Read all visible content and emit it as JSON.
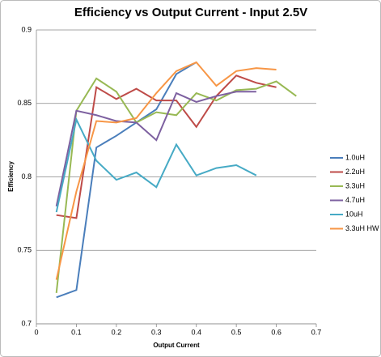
{
  "chart_data": {
    "type": "line",
    "title": "Efficiency vs Output Current - Input 2.5V",
    "x_label": "Output Current",
    "y_label": "Efficiency",
    "x": [
      0.05,
      0.1,
      0.15,
      0.2,
      0.25,
      0.3,
      0.35,
      0.4,
      0.45,
      0.5,
      0.55,
      0.6,
      0.65
    ],
    "series": [
      {
        "name": "1.0uH",
        "color": "#4a7ebb",
        "values": [
          0.718,
          0.723,
          0.82,
          0.828,
          0.837,
          0.846,
          0.87,
          0.878,
          null,
          null,
          null,
          null,
          null
        ]
      },
      {
        "name": "2.2uH",
        "color": "#be4b48",
        "values": [
          0.774,
          0.772,
          0.861,
          0.853,
          0.86,
          0.852,
          0.852,
          0.834,
          0.855,
          0.869,
          0.864,
          0.861,
          null
        ]
      },
      {
        "name": "3.3uH",
        "color": "#98b954",
        "values": [
          0.721,
          0.845,
          0.867,
          0.858,
          0.837,
          0.844,
          0.842,
          0.857,
          0.852,
          0.859,
          0.86,
          0.865,
          0.855
        ]
      },
      {
        "name": "4.7uH",
        "color": "#7d60a0",
        "values": [
          0.78,
          0.845,
          0.842,
          0.838,
          0.837,
          0.825,
          0.857,
          0.851,
          0.855,
          0.858,
          0.858,
          null,
          null
        ]
      },
      {
        "name": "10uH",
        "color": "#46aac5",
        "values": [
          0.776,
          0.839,
          0.811,
          0.798,
          0.803,
          0.793,
          0.822,
          0.801,
          0.806,
          0.808,
          0.801,
          null,
          null
        ]
      },
      {
        "name": "3.3uH HW",
        "color": "#f79646",
        "values": [
          0.73,
          0.79,
          0.838,
          0.837,
          0.84,
          0.857,
          0.872,
          0.878,
          0.862,
          0.872,
          0.874,
          0.873,
          null
        ]
      }
    ],
    "xlim": [
      0,
      0.7
    ],
    "ylim": [
      0.7,
      0.9
    ],
    "xticks": [
      0,
      0.1,
      0.2,
      0.3,
      0.4,
      0.5,
      0.6,
      0.7
    ],
    "yticks": [
      0.7,
      0.75,
      0.8,
      0.85,
      0.9
    ],
    "grid": true,
    "legend": "right"
  }
}
